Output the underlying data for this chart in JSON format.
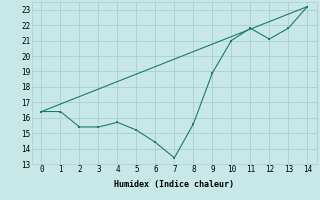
{
  "line1_x": [
    0,
    1,
    2,
    3,
    4,
    5,
    6,
    7,
    8,
    9,
    10,
    11,
    12,
    13,
    14
  ],
  "line1_y": [
    16.4,
    16.4,
    15.4,
    15.4,
    15.7,
    15.2,
    14.4,
    13.4,
    15.6,
    18.9,
    21.0,
    21.8,
    21.1,
    21.8,
    23.2
  ],
  "line2_x": [
    0,
    14
  ],
  "line2_y": [
    16.4,
    23.2
  ],
  "color": "#1a7a6e",
  "bg_color": "#c8e8e8",
  "grid_color": "#aacece",
  "xlabel": "Humidex (Indice chaleur)",
  "ylim": [
    13,
    23.5
  ],
  "xlim": [
    -0.5,
    14.5
  ],
  "yticks": [
    13,
    14,
    15,
    16,
    17,
    18,
    19,
    20,
    21,
    22,
    23
  ],
  "xticks": [
    0,
    1,
    2,
    3,
    4,
    5,
    6,
    7,
    8,
    9,
    10,
    11,
    12,
    13,
    14
  ]
}
